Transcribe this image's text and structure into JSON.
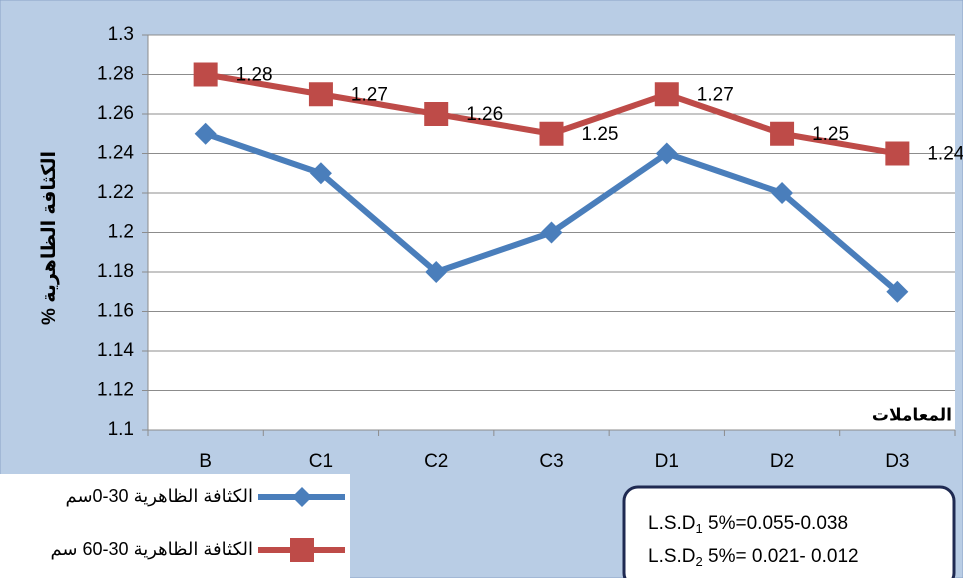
{
  "chart_data": {
    "type": "line",
    "y_label": "% الكثافة الظاهرية",
    "x_label": "المعاملات",
    "categories": [
      "B",
      "C1",
      "C2",
      "C3",
      "D1",
      "D2",
      "D3"
    ],
    "series": [
      {
        "name": "الكثافة الظاهرية 30-0سم",
        "color": "#4a7ebb",
        "marker": "diamond",
        "values": [
          1.25,
          1.23,
          1.18,
          1.2,
          1.24,
          1.22,
          1.17
        ]
      },
      {
        "name": "الكثافة الظاهرية 30-60 سم",
        "color": "#be4b48",
        "marker": "square",
        "data_labels": true,
        "values": [
          1.28,
          1.27,
          1.26,
          1.25,
          1.27,
          1.25,
          1.24
        ]
      }
    ],
    "ylim": [
      1.1,
      1.3
    ],
    "yticks": [
      1.1,
      1.12,
      1.14,
      1.16,
      1.18,
      1.2,
      1.22,
      1.24,
      1.26,
      1.28,
      1.3
    ],
    "grid": true,
    "legend": "bottom-left",
    "annotations": [
      {
        "main": "L.S.D",
        "sub": "1",
        "rest": " 5%=0.055-0.038"
      },
      {
        "main": "L.S.D",
        "sub": "2",
        "rest": " 5%= 0.021- 0.012"
      }
    ]
  }
}
